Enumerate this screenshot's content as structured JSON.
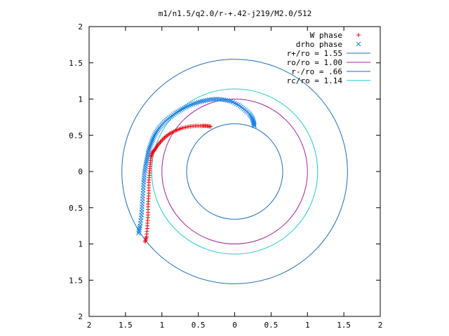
{
  "chart_data": {
    "type": "scatter",
    "title": "m1/n1.5/q2.0/r-+.42-j219/M2.0/512",
    "xlabel": "",
    "ylabel": "",
    "xlim": [
      -2,
      2
    ],
    "ylim": [
      -2,
      2
    ],
    "grid": false,
    "legend_position": "top-right",
    "x_tick_labels": [
      "2",
      "1.5",
      "1",
      "0.5",
      "0",
      "0.5",
      "1",
      "1.5",
      "2"
    ],
    "y_tick_labels": [
      "2",
      "1.5",
      "1",
      "0.5",
      "0",
      "0.5",
      "1",
      "1.5",
      "2"
    ],
    "x_ticks": [
      -2,
      -1.5,
      -1,
      -0.5,
      0,
      0.5,
      1,
      1.5,
      2
    ],
    "y_ticks": [
      2,
      1.5,
      1,
      0.5,
      0,
      -0.5,
      -1,
      -1.5,
      -2
    ],
    "series": [
      {
        "name": "W phase",
        "kind": "points",
        "marker": "plus",
        "color": "#e8090f",
        "x": [
          -1.23,
          -1.21,
          -1.2,
          -1.19,
          -1.19,
          -1.18,
          -1.18,
          -1.17,
          -1.16,
          -1.15,
          -1.13,
          -1.1,
          -1.06,
          -1.01,
          -0.95,
          -0.88,
          -0.8,
          -0.72,
          -0.63,
          -0.54,
          -0.45,
          -0.39,
          -0.33
        ],
        "y": [
          -0.97,
          -0.9,
          -0.75,
          -0.6,
          -0.45,
          -0.3,
          -0.15,
          -0.02,
          0.1,
          0.2,
          0.26,
          0.3,
          0.36,
          0.42,
          0.48,
          0.53,
          0.57,
          0.6,
          0.62,
          0.63,
          0.63,
          0.63,
          0.62
        ]
      },
      {
        "name": "drho phase",
        "kind": "points",
        "marker": "cross",
        "color": "#1a82e0",
        "x": [
          -1.32,
          -1.3,
          -1.28,
          -1.27,
          -1.26,
          -1.25,
          -1.24,
          -1.22,
          -1.2,
          -1.18,
          -1.15,
          -1.12,
          -1.08,
          -1.03,
          -0.97,
          -0.9,
          -0.82,
          -0.74,
          -0.65,
          -0.55,
          -0.45,
          -0.35,
          -0.25,
          -0.15,
          -0.05,
          0.05,
          0.13,
          0.2,
          0.24,
          0.26,
          0.27
        ],
        "y": [
          -0.85,
          -0.75,
          -0.6,
          -0.45,
          -0.3,
          -0.15,
          -0.02,
          0.1,
          0.2,
          0.3,
          0.38,
          0.46,
          0.54,
          0.61,
          0.68,
          0.74,
          0.8,
          0.85,
          0.9,
          0.94,
          0.97,
          0.99,
          1.0,
          0.99,
          0.97,
          0.92,
          0.86,
          0.8,
          0.74,
          0.68,
          0.63
        ]
      },
      {
        "name": "r+/ro = 1.55",
        "kind": "circle",
        "radius": 1.55,
        "color": "#1b6cb8"
      },
      {
        "name": "ro/ro = 1.00",
        "kind": "circle",
        "radius": 1.0,
        "color": "#a020a0"
      },
      {
        "name": "r-/ro = .66",
        "kind": "circle",
        "radius": 0.66,
        "color": "#1b6cb8"
      },
      {
        "name": "rc/ro = 1.14",
        "kind": "circle",
        "radius": 1.14,
        "color": "#1ec8c8"
      }
    ]
  }
}
